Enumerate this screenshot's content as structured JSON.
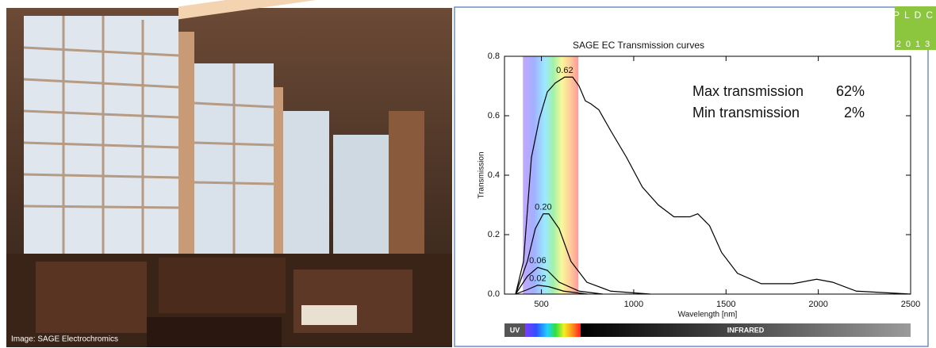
{
  "photo_caption": "Image: SAGE Electrochromics",
  "logo": {
    "top": "PLDC",
    "bottom": "2013"
  },
  "spectrum_bar": {
    "uv": "UV",
    "infrared": "INFRARED"
  },
  "chart_data": {
    "type": "line",
    "title": "SAGE EC Transmission curves",
    "x_label": "Wavelength [nm]",
    "y_label": "Transmission",
    "xlim": [
      300,
      2500
    ],
    "ylim": [
      0,
      0.8
    ],
    "xticks": [
      500,
      1000,
      1500,
      2000,
      2500
    ],
    "yticks": [
      {
        "value": 0,
        "label": "0.0"
      },
      0.2,
      0.4,
      0.6,
      0.8
    ],
    "visible_band": [
      400,
      700
    ],
    "annotations": [
      {
        "label": "Max transmission",
        "value": "62%"
      },
      {
        "label": "Min transmission",
        "value": "2%"
      }
    ],
    "series": [
      {
        "name": "0.62",
        "color": "#000000",
        "x": [
          360,
          403,
          446,
          489,
          532,
          575,
          626,
          669,
          704,
          738,
          768,
          811,
          875,
          961,
          1047,
          1133,
          1218,
          1304,
          1347,
          1411,
          1476,
          1562,
          1691,
          1862,
          1991,
          2077,
          2206,
          2500
        ],
        "values": [
          0,
          0.11,
          0.46,
          0.59,
          0.68,
          0.71,
          0.73,
          0.73,
          0.7,
          0.65,
          0.64,
          0.62,
          0.55,
          0.46,
          0.36,
          0.3,
          0.26,
          0.26,
          0.27,
          0.23,
          0.14,
          0.07,
          0.035,
          0.035,
          0.05,
          0.04,
          0.01,
          0
        ]
      },
      {
        "name": "0.20",
        "color": "#000000",
        "x": [
          360,
          424,
          467,
          510,
          540,
          596,
          660,
          746,
          875,
          1090
        ],
        "values": [
          0,
          0.11,
          0.22,
          0.27,
          0.27,
          0.22,
          0.11,
          0.04,
          0.01,
          0
        ]
      },
      {
        "name": "0.06",
        "color": "#000000",
        "x": [
          360,
          424,
          480,
          532,
          596,
          704,
          832
        ],
        "values": [
          0,
          0.06,
          0.09,
          0.08,
          0.04,
          0.01,
          0
        ]
      },
      {
        "name": "0.02",
        "color": "#000000",
        "x": [
          360,
          424,
          480,
          540,
          620,
          750
        ],
        "values": [
          0,
          0.015,
          0.03,
          0.025,
          0.01,
          0
        ]
      }
    ]
  }
}
